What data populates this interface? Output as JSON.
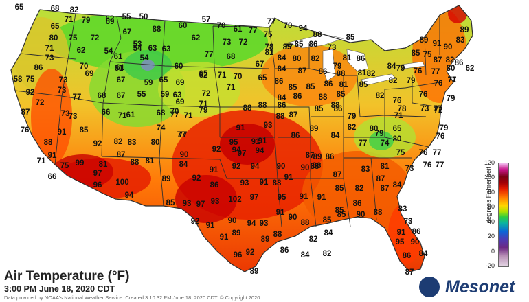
{
  "title": "Air Temperature (°F)",
  "subtitle": "3:00 PM June 18, 2020 CDT",
  "credit": "Data provided by NOAA's National Weather Service. Created 3:10:32 PM June 18, 2020 CDT. © Copyright 2020",
  "logo_text": "Mesonet",
  "colorbar": {
    "label": "degrees Fahrenheit",
    "ticks": [
      "120",
      "100",
      "80",
      "60",
      "40",
      "20",
      "0",
      "-20"
    ]
  },
  "colors": {
    "ocean": "#ffffff",
    "cool": "#7fdc2a",
    "mild": "#f0b020",
    "warm": "#ff6a00",
    "hot": "#e82000",
    "very_hot": "#c50000",
    "border": "#2f2f2f"
  },
  "readings": [
    "65",
    "68",
    "82",
    "62",
    "55",
    "50",
    "57",
    "70",
    "77",
    "70",
    "94",
    "65",
    "71",
    "79",
    "69",
    "67",
    "88",
    "60",
    "61",
    "77",
    "75",
    "88",
    "85",
    "89",
    "91",
    "89",
    "80",
    "75",
    "72",
    "53",
    "62",
    "73",
    "72",
    "78",
    "77",
    "73",
    "85",
    "90",
    "83",
    "71",
    "62",
    "54",
    "54",
    "63",
    "77",
    "81",
    "85",
    "86",
    "81",
    "85",
    "75",
    "73",
    "70",
    "61",
    "54",
    "63",
    "68",
    "84",
    "80",
    "82",
    "79",
    "86",
    "84",
    "87",
    "82",
    "86",
    "80",
    "62",
    "86",
    "69",
    "61",
    "61",
    "60",
    "65",
    "67",
    "84",
    "87",
    "86",
    "88",
    "81",
    "82",
    "79",
    "76",
    "77",
    "71",
    "58",
    "75",
    "73",
    "67",
    "59",
    "65",
    "69",
    "62",
    "71",
    "70",
    "65",
    "86",
    "85",
    "85",
    "86",
    "81",
    "85",
    "82",
    "79",
    "76",
    "77",
    "92",
    "73",
    "77",
    "68",
    "67",
    "55",
    "59",
    "63",
    "72",
    "71",
    "84",
    "86",
    "88",
    "85",
    "82",
    "76",
    "76",
    "79",
    "87",
    "72",
    "66",
    "61",
    "69",
    "79",
    "77",
    "71",
    "88",
    "88",
    "86",
    "86",
    "78",
    "73",
    "72",
    "73",
    "73",
    "71",
    "68",
    "70",
    "71",
    "87",
    "88",
    "85",
    "88",
    "79",
    "71",
    "77",
    "76",
    "91",
    "85",
    "74",
    "77",
    "91",
    "93",
    "89",
    "82",
    "80",
    "65",
    "79",
    "88",
    "92",
    "82",
    "83",
    "80",
    "77",
    "95",
    "91",
    "86",
    "84",
    "79",
    "80",
    "76",
    "71",
    "91",
    "75",
    "87",
    "90",
    "92",
    "94",
    "91",
    "97",
    "94",
    "87",
    "86",
    "89",
    "77",
    "74",
    "75",
    "76",
    "77",
    "99",
    "81",
    "88",
    "81",
    "84",
    "91",
    "92",
    "94",
    "90",
    "88",
    "90",
    "88",
    "87",
    "83",
    "81",
    "73",
    "76",
    "66",
    "97",
    "89",
    "92",
    "86",
    "93",
    "91",
    "88",
    "91",
    "85",
    "82",
    "87",
    "77",
    "96",
    "100",
    "94",
    "85",
    "93",
    "97",
    "93",
    "102",
    "97",
    "95",
    "91",
    "91",
    "86",
    "85",
    "87",
    "84",
    "92",
    "91",
    "90",
    "94",
    "93",
    "91",
    "90",
    "88",
    "85",
    "85",
    "90",
    "88",
    "83",
    "91",
    "89",
    "89",
    "88",
    "82",
    "84",
    "91",
    "86",
    "73",
    "96",
    "92",
    "86",
    "84",
    "82",
    "95",
    "90",
    "86",
    "84",
    "89",
    "87"
  ]
}
